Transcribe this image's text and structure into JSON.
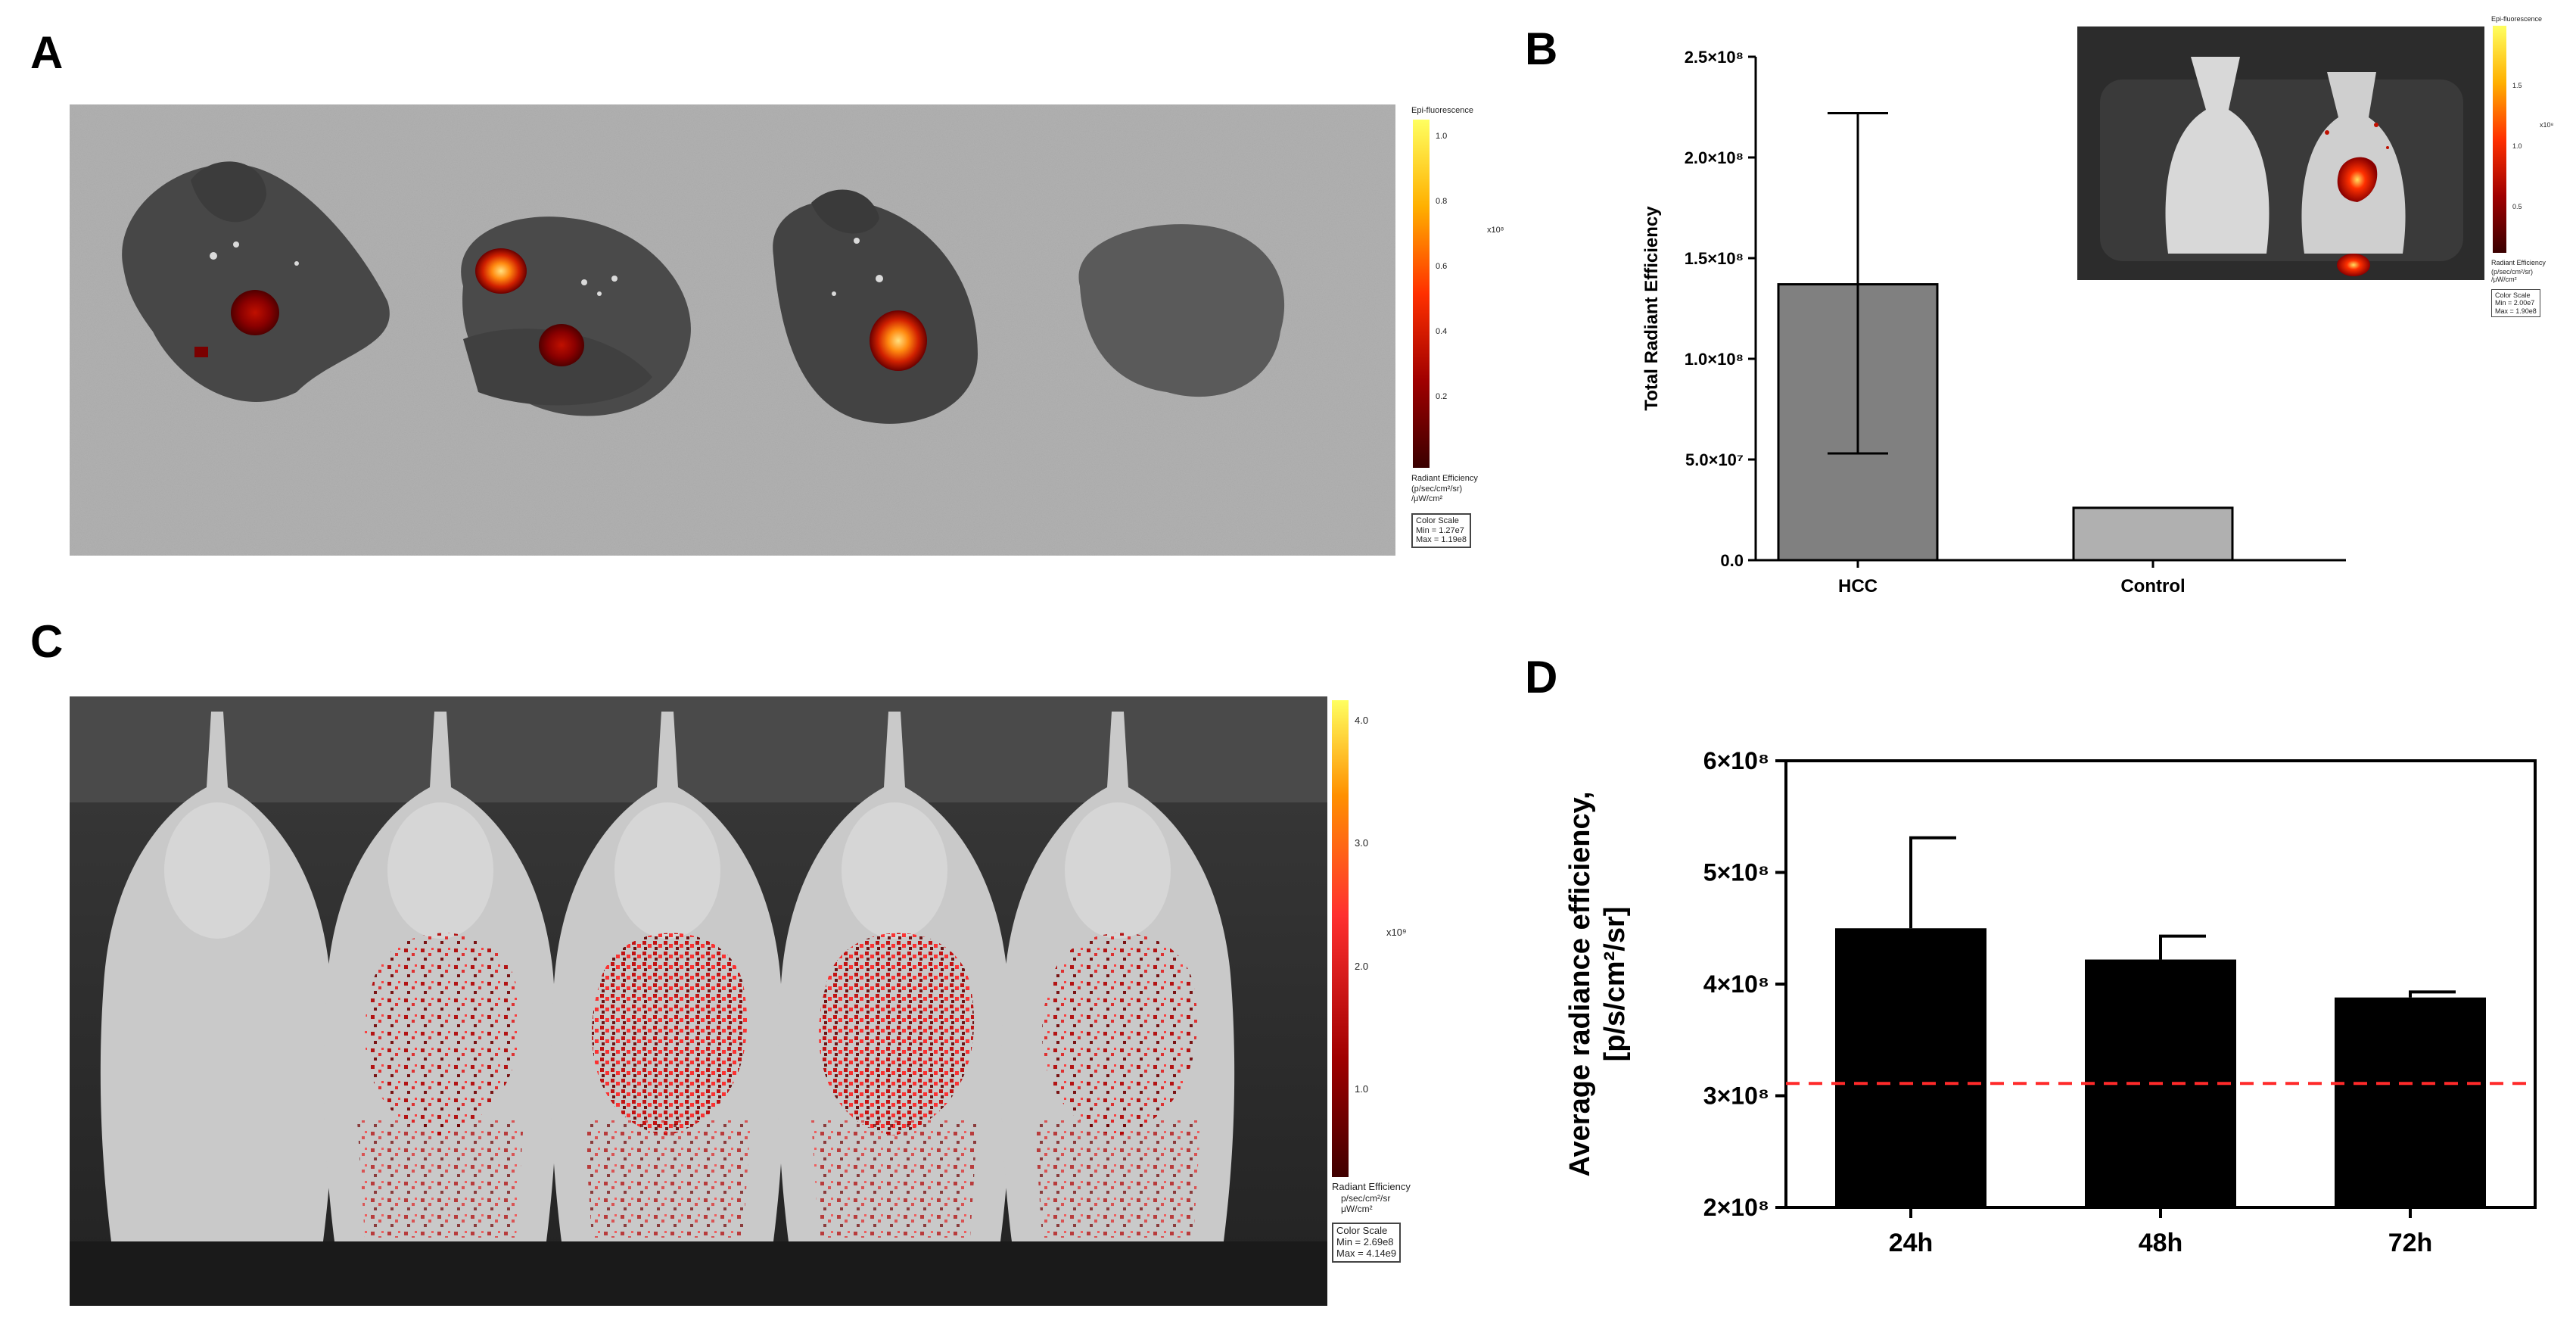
{
  "panels": {
    "a": {
      "letter": "A",
      "scalebar": {
        "title": "Epi-fluorescence",
        "exponent": "x10⁸",
        "ticks": [
          "1.0",
          "0.8",
          "0.6",
          "0.4",
          "0.2"
        ],
        "unit_title": "Radiant Efficiency",
        "unit": "(p/sec/cm²/sr)\n/μW/cm²",
        "color_scale": "Color Scale",
        "min": "Min = 1.27e7",
        "max": "Max = 1.19e8"
      }
    },
    "b": {
      "letter": "B",
      "scalebar": {
        "title": "Epi-fluorescence",
        "exponent": "x10⁸",
        "ticks": [
          "1.5",
          "1.0",
          "0.5"
        ],
        "unit_title": "Radiant Efficiency",
        "unit": "(p/sec/cm²/sr)\n/μW/cm²",
        "color_scale": "Color Scale",
        "min": "Min = 2.00e7",
        "max": "Max = 1.90e8"
      }
    },
    "c": {
      "letter": "C",
      "scalebar": {
        "exponent": "x10⁹",
        "ticks": [
          "4.0",
          "3.0",
          "2.0",
          "1.0"
        ],
        "unit_title": "Radiant Efficiency",
        "unit": "p/sec/cm²/sr\nμW/cm²",
        "color_scale": "Color Scale",
        "min": "Min = 2.69e8",
        "max": "Max = 4.14e9"
      }
    },
    "d": {
      "letter": "D"
    }
  },
  "chart_data": [
    {
      "panel": "B",
      "type": "bar",
      "categories": [
        "HCC",
        "Control"
      ],
      "values": [
        137000000,
        26000000
      ],
      "error_high": [
        222000000,
        null
      ],
      "error_low": [
        53000000,
        null
      ],
      "ylabel": "Total Radiant Efficiency",
      "xlabel": "",
      "ylim": [
        0,
        250000000
      ],
      "ytick_labels": [
        "0.0",
        "5.0×10⁷",
        "1.0×10⁸",
        "1.5×10⁸",
        "2.0×10⁸",
        "2.5×10⁸"
      ],
      "ytick_values": [
        0,
        50000000,
        100000000,
        150000000,
        200000000,
        250000000
      ],
      "bar_colors": [
        "#808080",
        "#b0b0b0"
      ],
      "grid": false
    },
    {
      "panel": "D",
      "type": "bar",
      "categories": [
        "24h",
        "48h",
        "72h"
      ],
      "values": [
        450000000,
        422000000,
        388000000
      ],
      "error_high": [
        531000000,
        443000000,
        393000000
      ],
      "ylabel": "Average radiance efficiency,\n[p/s/cm²/sr]",
      "xlabel": "",
      "ylim": [
        200000000,
        600000000
      ],
      "ytick_labels": [
        "2×10⁸",
        "3×10⁸",
        "4×10⁸",
        "5×10⁸",
        "6×10⁸"
      ],
      "ytick_values": [
        200000000,
        300000000,
        400000000,
        500000000,
        600000000
      ],
      "reference_line": 311000000,
      "reference_color": "#ff2a2a",
      "bar_colors": [
        "#000000",
        "#000000",
        "#000000"
      ],
      "grid": false
    }
  ]
}
